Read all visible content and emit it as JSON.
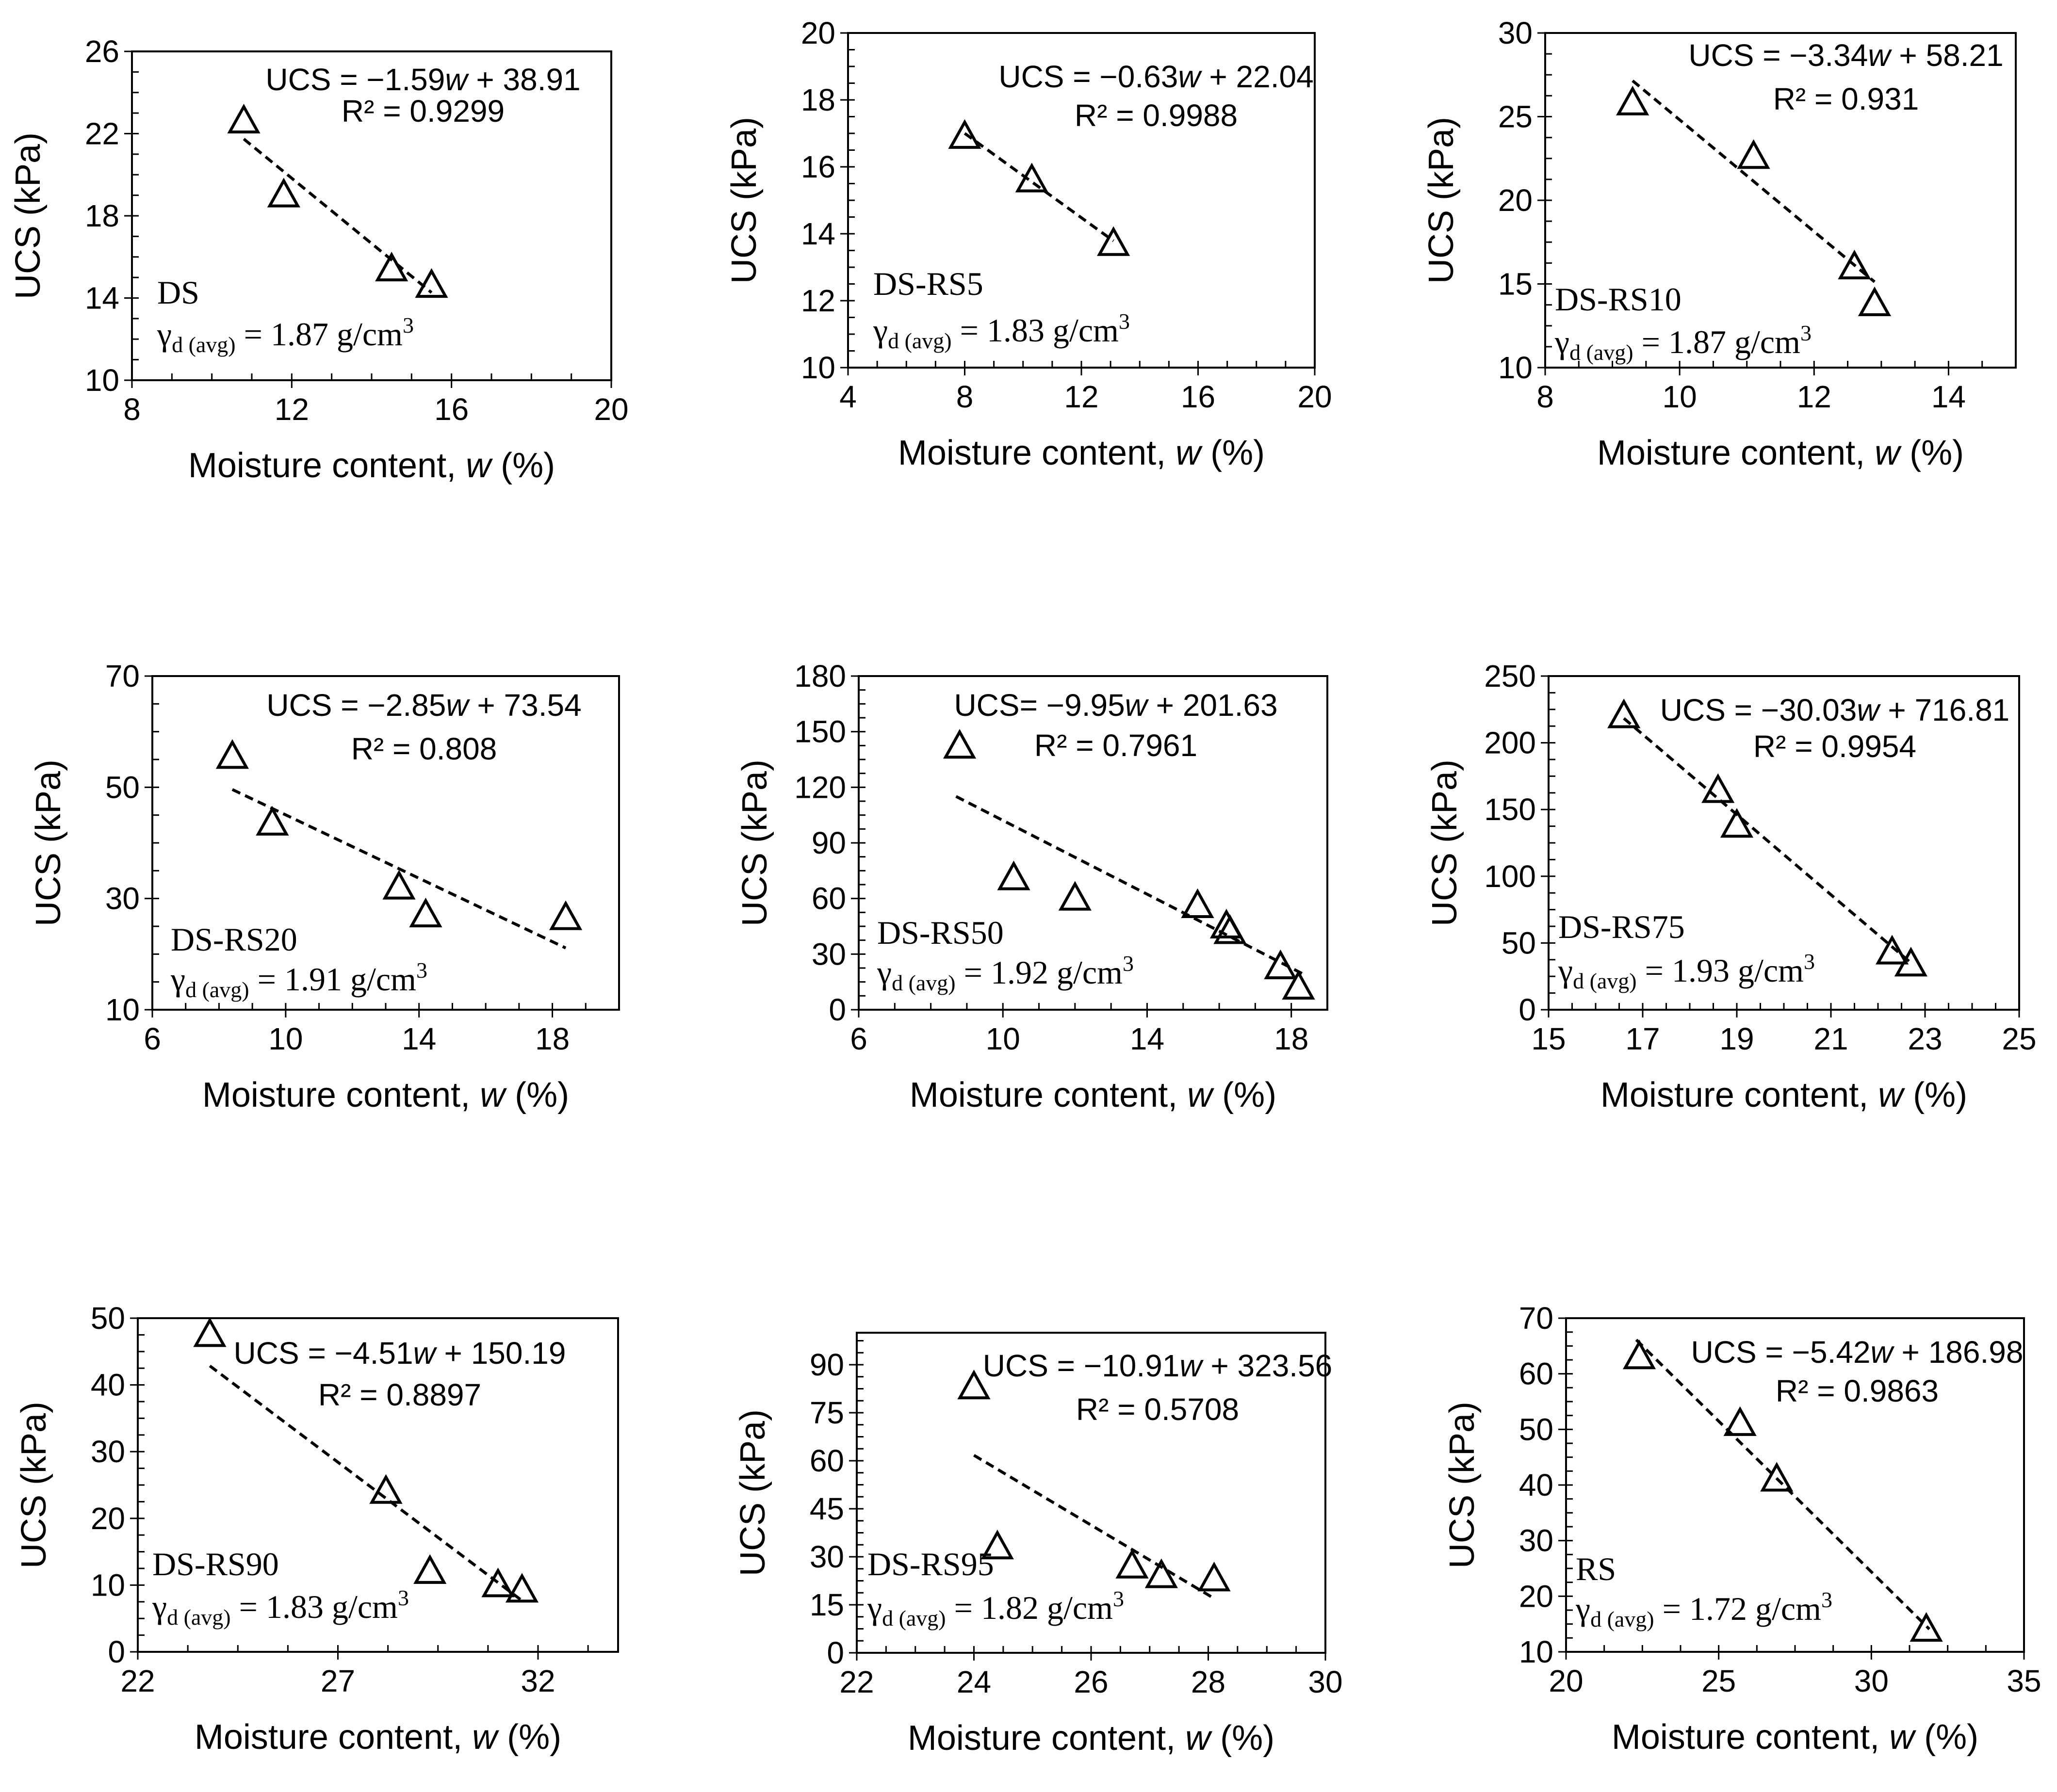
{
  "figure": {
    "x_title_text": "Moisture content, ",
    "x_title_var": "w",
    "x_title_unit": " (%)",
    "y_title": "UCS (kPa)",
    "y_title_alt": "UCS  (kPa)",
    "gamma_symbol": "γ",
    "gamma_sub": "d (avg)",
    "gamma_eq": " = ",
    "gamma_unit": " g/cm",
    "gamma_exp": "3",
    "marker": "open-triangle",
    "trendline": "dashed-linear"
  },
  "chart_data": [
    {
      "type": "scatter",
      "label": "DS",
      "xlabel": "Moisture content, w (%)",
      "ylabel": "UCS  (kPa)",
      "xlim": [
        8,
        20
      ],
      "xticks": [
        8,
        12,
        16,
        20
      ],
      "ylim": [
        10,
        26
      ],
      "yticks": [
        10,
        14,
        18,
        22,
        26
      ],
      "points": [
        [
          10.8,
          22.6
        ],
        [
          11.8,
          19.0
        ],
        [
          14.5,
          15.4
        ],
        [
          15.5,
          14.6
        ]
      ],
      "trend": {
        "slope": -1.59,
        "intercept": 38.91,
        "x": [
          10.8,
          15.5
        ]
      },
      "equation": "UCS = −1.59w + 38.91",
      "eq_coef": "UCS = −1.59",
      "eq_var": "w",
      "eq_const": " + 38.91",
      "r2": "R² = 0.9299",
      "gamma": "1.87"
    },
    {
      "type": "scatter",
      "label": "DS-RS5",
      "xlabel": "Moisture content, w (%)",
      "ylabel": "UCS (kPa)",
      "xlim": [
        4,
        20
      ],
      "xticks": [
        4,
        8,
        12,
        16,
        20
      ],
      "ylim": [
        10,
        20
      ],
      "yticks": [
        10,
        12,
        14,
        16,
        18,
        20
      ],
      "points": [
        [
          8.0,
          16.9
        ],
        [
          10.3,
          15.6
        ],
        [
          13.1,
          13.7
        ]
      ],
      "trend": {
        "slope": -0.63,
        "intercept": 22.04,
        "x": [
          8.0,
          13.1
        ]
      },
      "equation": "UCS = −0.63w + 22.04",
      "eq_coef": "UCS = −0.63",
      "eq_var": "w",
      "eq_const": " + 22.04",
      "r2": "R² = 0.9988",
      "gamma": "1.83"
    },
    {
      "type": "scatter",
      "label": "DS-RS10",
      "xlabel": "Moisture content, w (%)",
      "ylabel": "UCS (kPa)",
      "xlim": [
        8,
        15
      ],
      "xticks": [
        8,
        10,
        12,
        14
      ],
      "ylim": [
        10,
        30
      ],
      "yticks": [
        10,
        15,
        20,
        25,
        30
      ],
      "points": [
        [
          9.3,
          25.8
        ],
        [
          11.1,
          22.6
        ],
        [
          12.6,
          16.0
        ],
        [
          12.9,
          13.8
        ]
      ],
      "trend": {
        "slope": -3.34,
        "intercept": 58.21,
        "x": [
          9.3,
          12.9
        ]
      },
      "equation": "UCS = −3.34w + 58.21",
      "eq_coef": "UCS = −3.34",
      "eq_var": "w",
      "eq_const": " + 58.21",
      "r2": "R² = 0.931",
      "gamma": "1.87"
    },
    {
      "type": "scatter",
      "label": "DS-RS20",
      "xlabel": "Moisture content, w (%)",
      "ylabel": "UCS (kPa)",
      "xlim": [
        6,
        20
      ],
      "xticks": [
        6,
        10,
        14,
        18
      ],
      "ylim": [
        10,
        70
      ],
      "yticks": [
        10,
        30,
        50,
        70
      ],
      "points": [
        [
          8.4,
          55.5
        ],
        [
          9.6,
          43.5
        ],
        [
          13.4,
          32.0
        ],
        [
          14.2,
          27.0
        ],
        [
          18.4,
          26.5
        ]
      ],
      "trend": {
        "slope": -2.85,
        "intercept": 73.54,
        "x": [
          8.4,
          18.4
        ]
      },
      "equation": "UCS = −2.85w + 73.54",
      "eq_coef": "UCS = −2.85",
      "eq_var": "w",
      "eq_const": " + 73.54",
      "r2": "R² = 0.808",
      "gamma": "1.91"
    },
    {
      "type": "scatter",
      "label": "DS-RS50",
      "xlabel": "Moisture content, w (%)",
      "ylabel": "UCS (kPa)",
      "xlim": [
        6,
        19
      ],
      "xticks": [
        6,
        10,
        14,
        18
      ],
      "ylim": [
        0,
        180
      ],
      "yticks": [
        0,
        30,
        60,
        90,
        120,
        150,
        180
      ],
      "points": [
        [
          8.8,
          142
        ],
        [
          10.3,
          71
        ],
        [
          12.0,
          60
        ],
        [
          15.4,
          56
        ],
        [
          16.2,
          45
        ],
        [
          16.3,
          42
        ],
        [
          17.7,
          23
        ],
        [
          18.2,
          12
        ]
      ],
      "trend": {
        "slope": -9.95,
        "intercept": 201.63,
        "x": [
          8.7,
          18.3
        ]
      },
      "equation": "UCS= −9.95w + 201.63",
      "eq_coef": "UCS= −9.95",
      "eq_var": "w",
      "eq_const": " + 201.63",
      "r2": "R² = 0.7961",
      "gamma": "1.92"
    },
    {
      "type": "scatter",
      "label": "DS-RS75",
      "xlabel": "Moisture content, w (%)",
      "ylabel": "UCS (kPa)",
      "xlim": [
        15,
        25
      ],
      "xticks": [
        15,
        17,
        19,
        21,
        23,
        25
      ],
      "ylim": [
        0,
        250
      ],
      "yticks": [
        0,
        50,
        100,
        150,
        200,
        250
      ],
      "points": [
        [
          16.6,
          220
        ],
        [
          18.6,
          164
        ],
        [
          19.0,
          138
        ],
        [
          22.3,
          43
        ],
        [
          22.7,
          34
        ]
      ],
      "trend": {
        "slope": -30.03,
        "intercept": 716.81,
        "x": [
          16.6,
          22.7
        ]
      },
      "equation": "UCS = −30.03w + 716.81",
      "eq_coef": "UCS = −30.03",
      "eq_var": "w",
      "eq_const": " + 716.81",
      "r2": "R² = 0.9954",
      "gamma": "1.93"
    },
    {
      "type": "scatter",
      "label": "DS-RS90",
      "xlabel": "Moisture content, w (%)",
      "ylabel": "UCS (kPa)",
      "xlim": [
        22,
        34
      ],
      "xticks": [
        22,
        27,
        32
      ],
      "ylim": [
        0,
        50
      ],
      "yticks": [
        0,
        10,
        20,
        30,
        40,
        50
      ],
      "points": [
        [
          23.8,
          47.5
        ],
        [
          28.2,
          24.0
        ],
        [
          29.3,
          12.0
        ],
        [
          31.0,
          10.0
        ],
        [
          31.6,
          9.2
        ]
      ],
      "trend": {
        "slope": -4.51,
        "intercept": 150.19,
        "x": [
          23.8,
          31.6
        ]
      },
      "equation": "UCS = −4.51w + 150.19",
      "eq_coef": "UCS = −4.51",
      "eq_var": "w",
      "eq_const": " + 150.19",
      "r2": "R² = 0.8897",
      "gamma": "1.83"
    },
    {
      "type": "scatter",
      "label": "DS-RS95",
      "xlabel": "Moisture content, w (%)",
      "ylabel": "UCS (kPa)",
      "xlim": [
        22,
        30
      ],
      "xticks": [
        22,
        24,
        26,
        28,
        30
      ],
      "ylim": [
        0,
        100
      ],
      "yticks": [
        0,
        15,
        30,
        45,
        60,
        75,
        90
      ],
      "points": [
        [
          24.0,
          83
        ],
        [
          24.4,
          33
        ],
        [
          26.7,
          27
        ],
        [
          27.2,
          24
        ],
        [
          28.1,
          23
        ]
      ],
      "trend": {
        "slope": -10.91,
        "intercept": 323.56,
        "x": [
          24.0,
          28.1
        ]
      },
      "equation": "UCS = −10.91w + 323.56",
      "eq_coef": "UCS = −10.91",
      "eq_var": "w",
      "eq_const": " + 323.56",
      "r2": "R² = 0.5708",
      "gamma": "1.82"
    },
    {
      "type": "scatter",
      "label": "RS",
      "xlabel": "Moisture content, w (%)",
      "ylabel": "UCS (kPa)",
      "xlim": [
        20,
        35
      ],
      "xticks": [
        20,
        25,
        30,
        35
      ],
      "ylim": [
        10,
        70
      ],
      "yticks": [
        10,
        20,
        30,
        40,
        50,
        60,
        70
      ],
      "points": [
        [
          22.4,
          63
        ],
        [
          25.7,
          51
        ],
        [
          26.9,
          41
        ],
        [
          31.8,
          14
        ]
      ],
      "trend": {
        "slope": -5.42,
        "intercept": 186.98,
        "x": [
          22.3,
          31.9
        ]
      },
      "equation": "UCS = −5.42w + 186.98",
      "eq_coef": "UCS = −5.42",
      "eq_var": "w",
      "eq_const": " + 186.98",
      "r2": "R² = 0.9863",
      "gamma": "1.72"
    }
  ]
}
